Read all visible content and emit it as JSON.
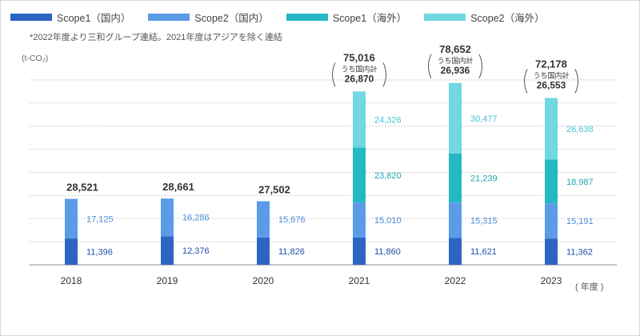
{
  "note": "*2022年度より三和グループ連結。2021年度はアジアを除く連結",
  "chart_data": {
    "type": "bar",
    "stacked": true,
    "unit_label": "(t-CO₂)",
    "x_axis_label": "( 年度 )",
    "categories": [
      "2018",
      "2019",
      "2020",
      "2021",
      "2022",
      "2023"
    ],
    "series": [
      {
        "name": "Scope1（国内）",
        "color": "#2c66c4",
        "label_color": "#1f4fa8",
        "values": [
          11396,
          12376,
          11826,
          11860,
          11621,
          11362
        ],
        "labels": [
          "11,396",
          "12,376",
          "11,826",
          "11,860",
          "11,621",
          "11,362"
        ]
      },
      {
        "name": "Scope2（国内）",
        "color": "#5b9be8",
        "label_color": "#4a8ede",
        "values": [
          17125,
          16286,
          15676,
          15010,
          15315,
          15191
        ],
        "labels": [
          "17,125",
          "16,286",
          "15,676",
          "15,010",
          "15,315",
          "15,191"
        ]
      },
      {
        "name": "Scope1（海外）",
        "color": "#26b8c4",
        "label_color": "#1fa9b5",
        "values": [
          0,
          0,
          0,
          23820,
          21239,
          18987
        ],
        "labels": [
          "",
          "",
          "",
          "23,820",
          "21,239",
          "18,987"
        ]
      },
      {
        "name": "Scope2（海外）",
        "color": "#70d8e3",
        "label_color": "#45c4d2",
        "values": [
          0,
          0,
          0,
          24326,
          30477,
          26638
        ],
        "labels": [
          "",
          "",
          "",
          "24,326",
          "30,477",
          "26,638"
        ]
      }
    ],
    "totals": [
      "28,521",
      "28,661",
      "27,502",
      "75,016",
      "78,652",
      "72,178"
    ],
    "domestic_label": "うち国内計",
    "domestic_totals": [
      "",
      "",
      "",
      "26,870",
      "26,936",
      "26,553"
    ],
    "ylim": [
      0,
      90000
    ],
    "grid": "dashed horizontal"
  }
}
